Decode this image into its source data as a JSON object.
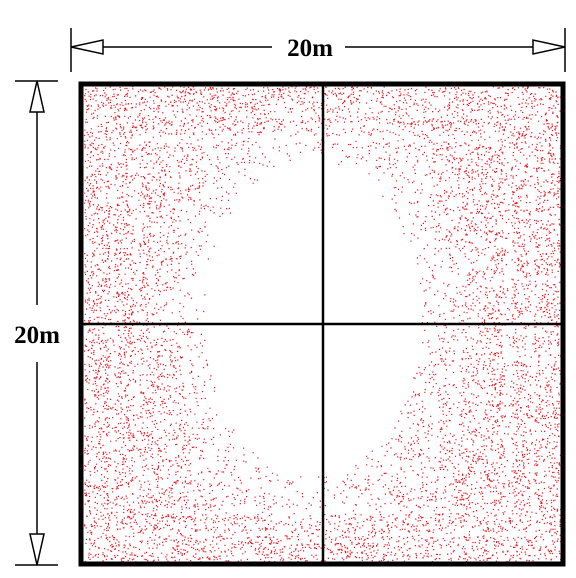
{
  "dimensions": {
    "width_label": "20m",
    "height_label": "20m"
  },
  "colors": {
    "point": "#e8141e",
    "frame": "#000000",
    "background": "#ffffff"
  },
  "icons": [
    "double-arrow-icon"
  ]
}
